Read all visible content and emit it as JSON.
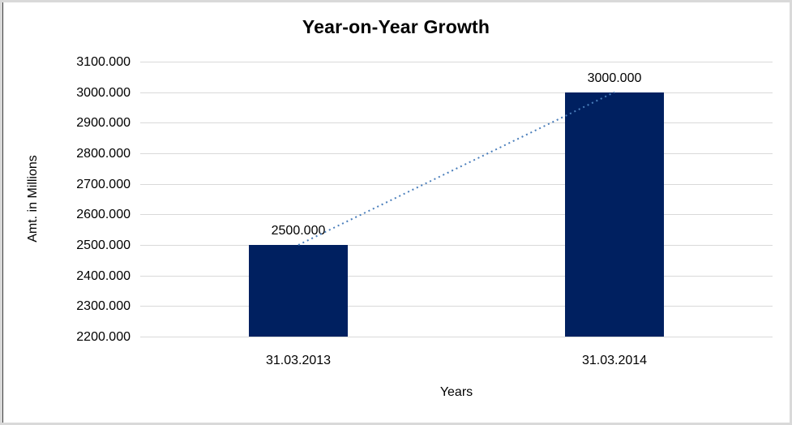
{
  "chart_data": {
    "type": "bar",
    "title": "Year-on-Year Growth",
    "xlabel": "Years",
    "ylabel": "Amt. in Millions",
    "categories": [
      "31.03.2013",
      "31.03.2014"
    ],
    "values": [
      2500,
      3000
    ],
    "data_labels": [
      "2500.000",
      "3000.000"
    ],
    "y_ticks": [
      "3100.000",
      "3000.000",
      "2900.000",
      "2800.000",
      "2700.000",
      "2600.000",
      "2500.000",
      "2400.000",
      "2300.000",
      "2200.000"
    ],
    "ylim": [
      2200,
      3100
    ],
    "grid": true,
    "legend_position": "none",
    "bar_color": "#002060",
    "trendline_color": "#4a7ebb",
    "trendline_style": "dotted",
    "gridline_color": "#d9d9d9"
  }
}
